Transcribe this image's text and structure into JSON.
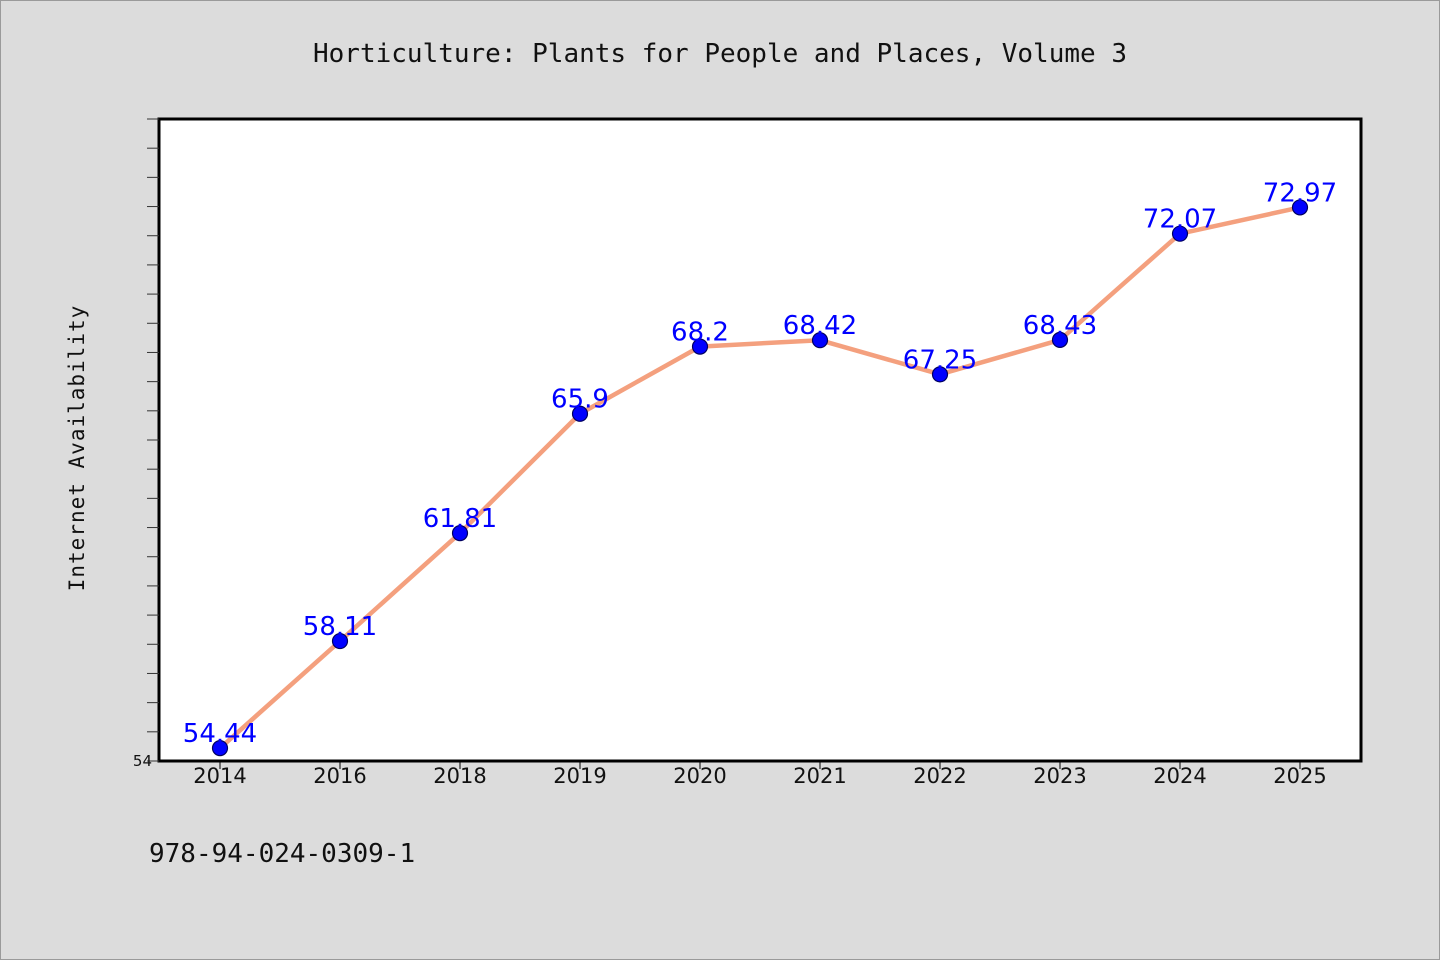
{
  "chart_data": {
    "type": "line",
    "title": "Horticulture: Plants for People and Places, Volume 3",
    "xlabel": "",
    "ylabel": "Internet Availability",
    "categories": [
      "2014",
      "2016",
      "2018",
      "2019",
      "2020",
      "2021",
      "2022",
      "2023",
      "2024",
      "2025"
    ],
    "series": [
      {
        "values": [
          54.44,
          58.11,
          61.81,
          65.9,
          68.2,
          68.42,
          67.25,
          68.43,
          72.07,
          72.97
        ]
      }
    ],
    "data_labels": [
      "54.44",
      "58.11",
      "61.81",
      "65.9",
      "68.2",
      "68.42",
      "67.25",
      "68.43",
      "72.07",
      "72.97"
    ],
    "ylim": [
      54,
      76
    ],
    "y_tick_labels": [
      {
        "value": 54,
        "label": "54"
      }
    ],
    "y_minor_tick_step": 1,
    "grid": false,
    "colors": {
      "line": "#f4a07e",
      "marker": "#0000ff",
      "marker_edge": "#000060",
      "label": "#0000ff"
    }
  },
  "footer": {
    "isbn": "978-94-024-0309-1"
  }
}
